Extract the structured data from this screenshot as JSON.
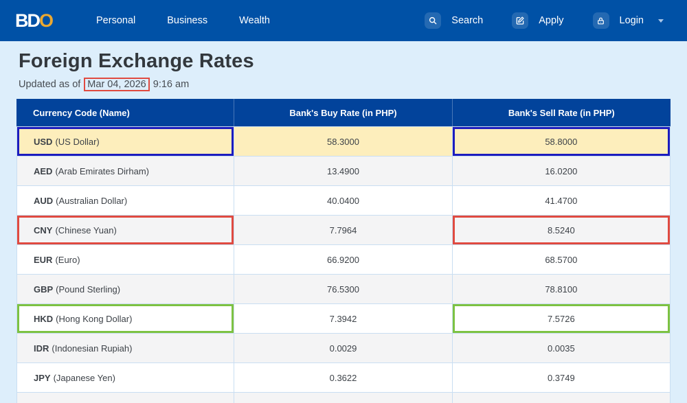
{
  "brand": {
    "logo_white": "BD",
    "logo_gold": "O"
  },
  "navbar": {
    "links": [
      {
        "label": "Personal"
      },
      {
        "label": "Business"
      },
      {
        "label": "Wealth"
      }
    ],
    "actions": [
      {
        "label": "Search",
        "icon": "search-icon"
      },
      {
        "label": "Apply",
        "icon": "edit-icon"
      },
      {
        "label": "Login",
        "icon": "lock-icon",
        "has_caret": true
      }
    ]
  },
  "page": {
    "title": "Foreign Exchange Rates",
    "updated_prefix": "Updated as of",
    "updated_date": "Mar 04, 2026",
    "updated_time": "9:16 am"
  },
  "colors": {
    "navbar": "#0051a6",
    "table_header": "#02439b",
    "page_background": "#ddeefb",
    "usd_row_highlight": "#fdeebc",
    "brand_gold": "#eaa831",
    "annotations": {
      "blue": "#1c1cbe",
      "red": "#e04a40",
      "green": "#7dc242"
    }
  },
  "table": {
    "columns": [
      "Currency Code (Name)",
      "Bank's Buy Rate (in PHP)",
      "Bank's Sell Rate (in PHP)"
    ],
    "rows": [
      {
        "code": "USD",
        "name": "(US Dollar)",
        "buy": "58.3000",
        "sell": "58.8000",
        "highlight": true,
        "annotation": "blue"
      },
      {
        "code": "AED",
        "name": "(Arab Emirates Dirham)",
        "buy": "13.4900",
        "sell": "16.0200"
      },
      {
        "code": "AUD",
        "name": "(Australian Dollar)",
        "buy": "40.0400",
        "sell": "41.4700"
      },
      {
        "code": "CNY",
        "name": "(Chinese Yuan)",
        "buy": "7.7964",
        "sell": "8.5240",
        "annotation": "red"
      },
      {
        "code": "EUR",
        "name": "(Euro)",
        "buy": "66.9200",
        "sell": "68.5700"
      },
      {
        "code": "GBP",
        "name": "(Pound Sterling)",
        "buy": "76.5300",
        "sell": "78.8100"
      },
      {
        "code": "HKD",
        "name": "(Hong Kong Dollar)",
        "buy": "7.3942",
        "sell": "7.5726",
        "annotation": "green"
      },
      {
        "code": "IDR",
        "name": "(Indonesian Rupiah)",
        "buy": "0.0029",
        "sell": "0.0035"
      },
      {
        "code": "JPY",
        "name": "(Japanese Yen)",
        "buy": "0.3622",
        "sell": "0.3749"
      },
      {
        "code": "",
        "name": "",
        "buy": "",
        "sell": "",
        "partial": true
      }
    ]
  }
}
